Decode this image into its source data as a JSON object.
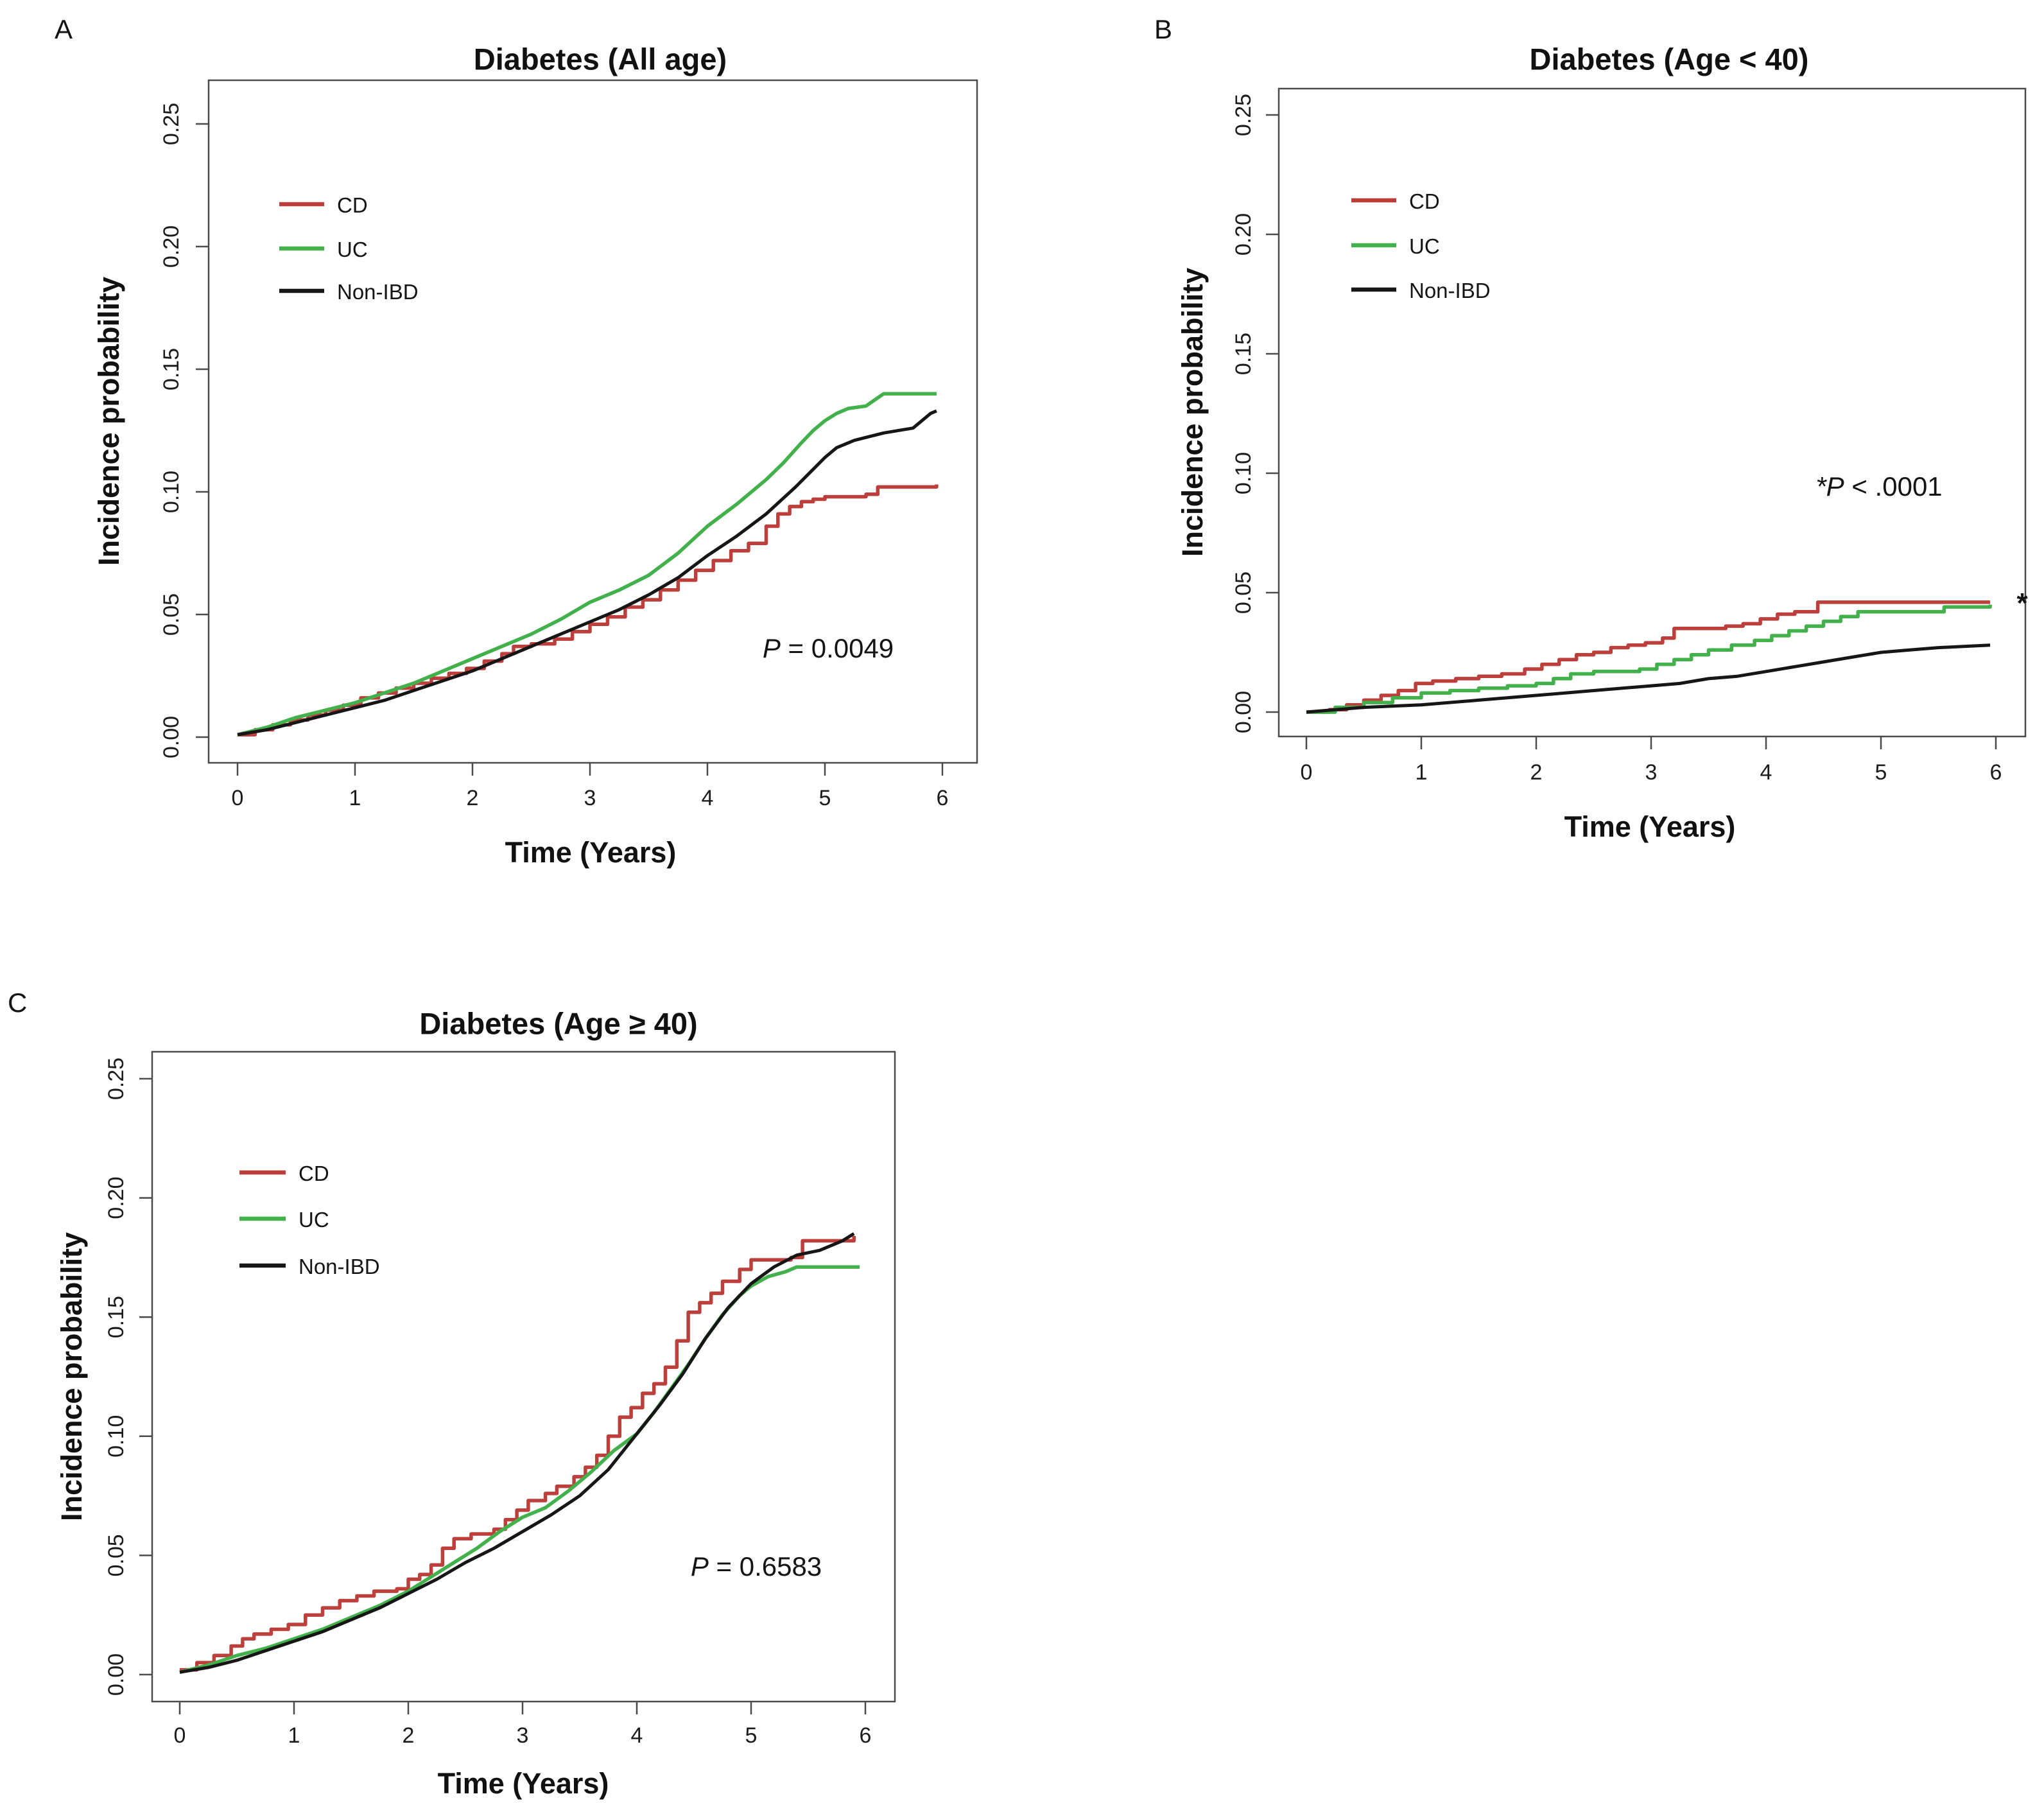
{
  "figure": {
    "background": "#ffffff"
  },
  "colors": {
    "cd": "#bc3f3c",
    "uc": "#43b14b",
    "non_ibd": "#161616",
    "axis": "#4a4a4a"
  },
  "chart_data": [
    {
      "id": "panel-a",
      "panel_label": "A",
      "type": "line",
      "title": "Diabetes (All age)",
      "xlabel": "Time (Years)",
      "ylabel": "Incidence probability",
      "xlim": [
        0,
        6.2
      ],
      "ylim": [
        0,
        0.26
      ],
      "xticks": [
        0,
        1,
        2,
        3,
        4,
        5,
        6
      ],
      "ytick_labels": [
        "0.00",
        "0.05",
        "0.10",
        "0.15",
        "0.20",
        "0.25"
      ],
      "grid": false,
      "legend_position": "upper-left-inside",
      "annotation": {
        "symbol": "P",
        "text": " = 0.0049",
        "x": 4.8,
        "y": 0.036
      },
      "series": [
        {
          "name": "CD",
          "color": "#bc3f3c",
          "interp": "step",
          "x": [
            0,
            0.15,
            0.3,
            0.45,
            0.6,
            0.75,
            0.9,
            1.05,
            1.2,
            1.35,
            1.5,
            1.65,
            1.8,
            1.95,
            2.1,
            2.25,
            2.35,
            2.5,
            2.7,
            2.85,
            3.0,
            3.15,
            3.3,
            3.45,
            3.6,
            3.75,
            3.9,
            4.05,
            4.2,
            4.35,
            4.5,
            4.6,
            4.7,
            4.8,
            4.9,
            5.0,
            5.35,
            5.45,
            5.95
          ],
          "y": [
            0.001,
            0.003,
            0.005,
            0.007,
            0.009,
            0.011,
            0.013,
            0.016,
            0.018,
            0.02,
            0.022,
            0.024,
            0.026,
            0.028,
            0.031,
            0.034,
            0.037,
            0.038,
            0.04,
            0.043,
            0.046,
            0.049,
            0.053,
            0.056,
            0.06,
            0.064,
            0.068,
            0.072,
            0.076,
            0.079,
            0.086,
            0.091,
            0.094,
            0.096,
            0.097,
            0.098,
            0.099,
            0.102,
            0.103
          ]
        },
        {
          "name": "UC",
          "color": "#43b14b",
          "interp": "linear",
          "x": [
            0,
            0.25,
            0.5,
            0.75,
            1.0,
            1.25,
            1.5,
            1.75,
            2.0,
            2.25,
            2.5,
            2.75,
            3.0,
            3.25,
            3.5,
            3.75,
            4.0,
            4.25,
            4.5,
            4.65,
            4.8,
            4.9,
            5.0,
            5.1,
            5.2,
            5.35,
            5.5,
            5.95
          ],
          "y": [
            0.001,
            0.004,
            0.008,
            0.011,
            0.014,
            0.018,
            0.022,
            0.027,
            0.032,
            0.037,
            0.042,
            0.048,
            0.055,
            0.06,
            0.066,
            0.075,
            0.086,
            0.095,
            0.105,
            0.112,
            0.12,
            0.125,
            0.129,
            0.132,
            0.134,
            0.135,
            0.14,
            0.14
          ]
        },
        {
          "name": "Non-IBD",
          "color": "#161616",
          "interp": "linear",
          "x": [
            0,
            0.25,
            0.5,
            0.75,
            1.0,
            1.25,
            1.5,
            1.75,
            2.0,
            2.25,
            2.5,
            2.75,
            3.0,
            3.25,
            3.5,
            3.75,
            4.0,
            4.25,
            4.5,
            4.75,
            5.0,
            5.1,
            5.25,
            5.5,
            5.75,
            5.9,
            5.95
          ],
          "y": [
            0.001,
            0.003,
            0.006,
            0.009,
            0.012,
            0.015,
            0.019,
            0.023,
            0.027,
            0.032,
            0.037,
            0.042,
            0.047,
            0.052,
            0.058,
            0.065,
            0.074,
            0.082,
            0.091,
            0.102,
            0.114,
            0.118,
            0.121,
            0.124,
            0.126,
            0.132,
            0.133
          ]
        }
      ]
    },
    {
      "id": "panel-b",
      "panel_label": "B",
      "type": "line",
      "title": "Diabetes (Age < 40)",
      "xlabel": "Time (Years)",
      "ylabel": "Incidence probability",
      "xlim": [
        0,
        6.2
      ],
      "ylim": [
        0,
        0.26
      ],
      "xticks": [
        0,
        1,
        2,
        3,
        4,
        5,
        6
      ],
      "ytick_labels": [
        "0.00",
        "0.05",
        "0.10",
        "0.15",
        "0.20",
        "0.25"
      ],
      "grid": false,
      "legend_position": "upper-left-inside",
      "annotation": {
        "symbol": "*P",
        "text": " < .0001",
        "x": 4.98,
        "y": 0.094
      },
      "side_star": "*",
      "series": [
        {
          "name": "CD",
          "color": "#bc3f3c",
          "interp": "step",
          "x": [
            0,
            0.2,
            0.35,
            0.5,
            0.65,
            0.8,
            0.95,
            1.1,
            1.3,
            1.5,
            1.7,
            1.9,
            2.05,
            2.2,
            2.35,
            2.5,
            2.65,
            2.8,
            2.95,
            3.1,
            3.2,
            3.5,
            3.65,
            3.8,
            3.95,
            4.1,
            4.25,
            4.45,
            5.95
          ],
          "y": [
            0.0,
            0.001,
            0.003,
            0.005,
            0.007,
            0.009,
            0.012,
            0.013,
            0.014,
            0.015,
            0.016,
            0.018,
            0.02,
            0.022,
            0.024,
            0.025,
            0.027,
            0.028,
            0.029,
            0.031,
            0.035,
            0.035,
            0.036,
            0.037,
            0.039,
            0.041,
            0.042,
            0.046,
            0.046
          ]
        },
        {
          "name": "UC",
          "color": "#43b14b",
          "interp": "step",
          "x": [
            0,
            0.25,
            0.5,
            0.75,
            1.0,
            1.25,
            1.5,
            1.75,
            2.0,
            2.15,
            2.3,
            2.5,
            2.9,
            3.05,
            3.2,
            3.35,
            3.5,
            3.7,
            3.9,
            4.05,
            4.2,
            4.35,
            4.5,
            4.65,
            4.8,
            5.45,
            5.55,
            5.95
          ],
          "y": [
            0.0,
            0.002,
            0.004,
            0.006,
            0.008,
            0.009,
            0.01,
            0.011,
            0.012,
            0.014,
            0.016,
            0.017,
            0.018,
            0.02,
            0.022,
            0.024,
            0.026,
            0.028,
            0.03,
            0.032,
            0.034,
            0.036,
            0.038,
            0.04,
            0.042,
            0.042,
            0.044,
            0.045
          ]
        },
        {
          "name": "Non-IBD",
          "color": "#161616",
          "interp": "linear",
          "x": [
            0,
            0.5,
            1.0,
            1.5,
            2.0,
            2.5,
            3.0,
            3.25,
            3.5,
            3.75,
            4.0,
            4.25,
            4.5,
            4.75,
            5.0,
            5.25,
            5.5,
            5.95
          ],
          "y": [
            0.0,
            0.002,
            0.003,
            0.005,
            0.007,
            0.009,
            0.011,
            0.012,
            0.014,
            0.015,
            0.017,
            0.019,
            0.021,
            0.023,
            0.025,
            0.026,
            0.027,
            0.028
          ]
        }
      ]
    },
    {
      "id": "panel-c",
      "panel_label": "C",
      "type": "line",
      "title": "Diabetes (Age ≥ 40)",
      "xlabel": "Time (Years)",
      "ylabel": "Incidence probability",
      "xlim": [
        0,
        6.2
      ],
      "ylim": [
        0,
        0.26
      ],
      "xticks": [
        0,
        1,
        2,
        3,
        4,
        5,
        6
      ],
      "ytick_labels": [
        "0.00",
        "0.05",
        "0.10",
        "0.15",
        "0.20",
        "0.25"
      ],
      "grid": false,
      "legend_position": "upper-left-inside",
      "annotation": {
        "symbol": "P",
        "text": " = 0.6583",
        "x": 5.04,
        "y": 0.045
      },
      "series": [
        {
          "name": "CD",
          "color": "#bc3f3c",
          "interp": "step",
          "x": [
            0,
            0.15,
            0.3,
            0.45,
            0.55,
            0.65,
            0.8,
            0.95,
            1.1,
            1.25,
            1.4,
            1.55,
            1.7,
            1.9,
            2.0,
            2.1,
            2.2,
            2.3,
            2.4,
            2.55,
            2.75,
            2.85,
            2.95,
            3.05,
            3.2,
            3.3,
            3.45,
            3.55,
            3.65,
            3.75,
            3.85,
            3.95,
            4.05,
            4.15,
            4.25,
            4.35,
            4.45,
            4.55,
            4.65,
            4.75,
            4.9,
            5.0,
            5.35,
            5.45,
            5.9
          ],
          "y": [
            0.002,
            0.005,
            0.008,
            0.012,
            0.015,
            0.017,
            0.019,
            0.021,
            0.025,
            0.028,
            0.031,
            0.033,
            0.035,
            0.036,
            0.04,
            0.042,
            0.046,
            0.053,
            0.057,
            0.059,
            0.061,
            0.065,
            0.069,
            0.073,
            0.076,
            0.079,
            0.083,
            0.087,
            0.092,
            0.1,
            0.108,
            0.112,
            0.118,
            0.122,
            0.129,
            0.14,
            0.152,
            0.156,
            0.16,
            0.165,
            0.17,
            0.174,
            0.175,
            0.182,
            0.184
          ]
        },
        {
          "name": "UC",
          "color": "#43b14b",
          "interp": "linear",
          "x": [
            0,
            0.25,
            0.5,
            0.75,
            1.0,
            1.25,
            1.5,
            1.75,
            2.0,
            2.2,
            2.4,
            2.6,
            2.8,
            3.0,
            3.2,
            3.4,
            3.6,
            3.8,
            4.0,
            4.15,
            4.3,
            4.45,
            4.6,
            4.75,
            4.9,
            5.0,
            5.15,
            5.3,
            5.4,
            5.95
          ],
          "y": [
            0.001,
            0.004,
            0.008,
            0.011,
            0.015,
            0.019,
            0.024,
            0.029,
            0.035,
            0.041,
            0.047,
            0.053,
            0.06,
            0.066,
            0.07,
            0.077,
            0.085,
            0.094,
            0.101,
            0.11,
            0.12,
            0.13,
            0.141,
            0.151,
            0.159,
            0.163,
            0.167,
            0.169,
            0.171,
            0.171
          ]
        },
        {
          "name": "Non-IBD",
          "color": "#161616",
          "interp": "linear",
          "x": [
            0,
            0.25,
            0.5,
            0.75,
            1.0,
            1.25,
            1.5,
            1.75,
            2.0,
            2.25,
            2.5,
            2.75,
            3.0,
            3.25,
            3.5,
            3.75,
            4.0,
            4.2,
            4.4,
            4.6,
            4.8,
            5.0,
            5.2,
            5.4,
            5.6,
            5.8,
            5.9
          ],
          "y": [
            0.001,
            0.003,
            0.006,
            0.01,
            0.014,
            0.018,
            0.023,
            0.028,
            0.034,
            0.04,
            0.047,
            0.053,
            0.06,
            0.067,
            0.075,
            0.086,
            0.101,
            0.113,
            0.126,
            0.141,
            0.154,
            0.164,
            0.171,
            0.176,
            0.178,
            0.182,
            0.185
          ]
        }
      ]
    }
  ]
}
